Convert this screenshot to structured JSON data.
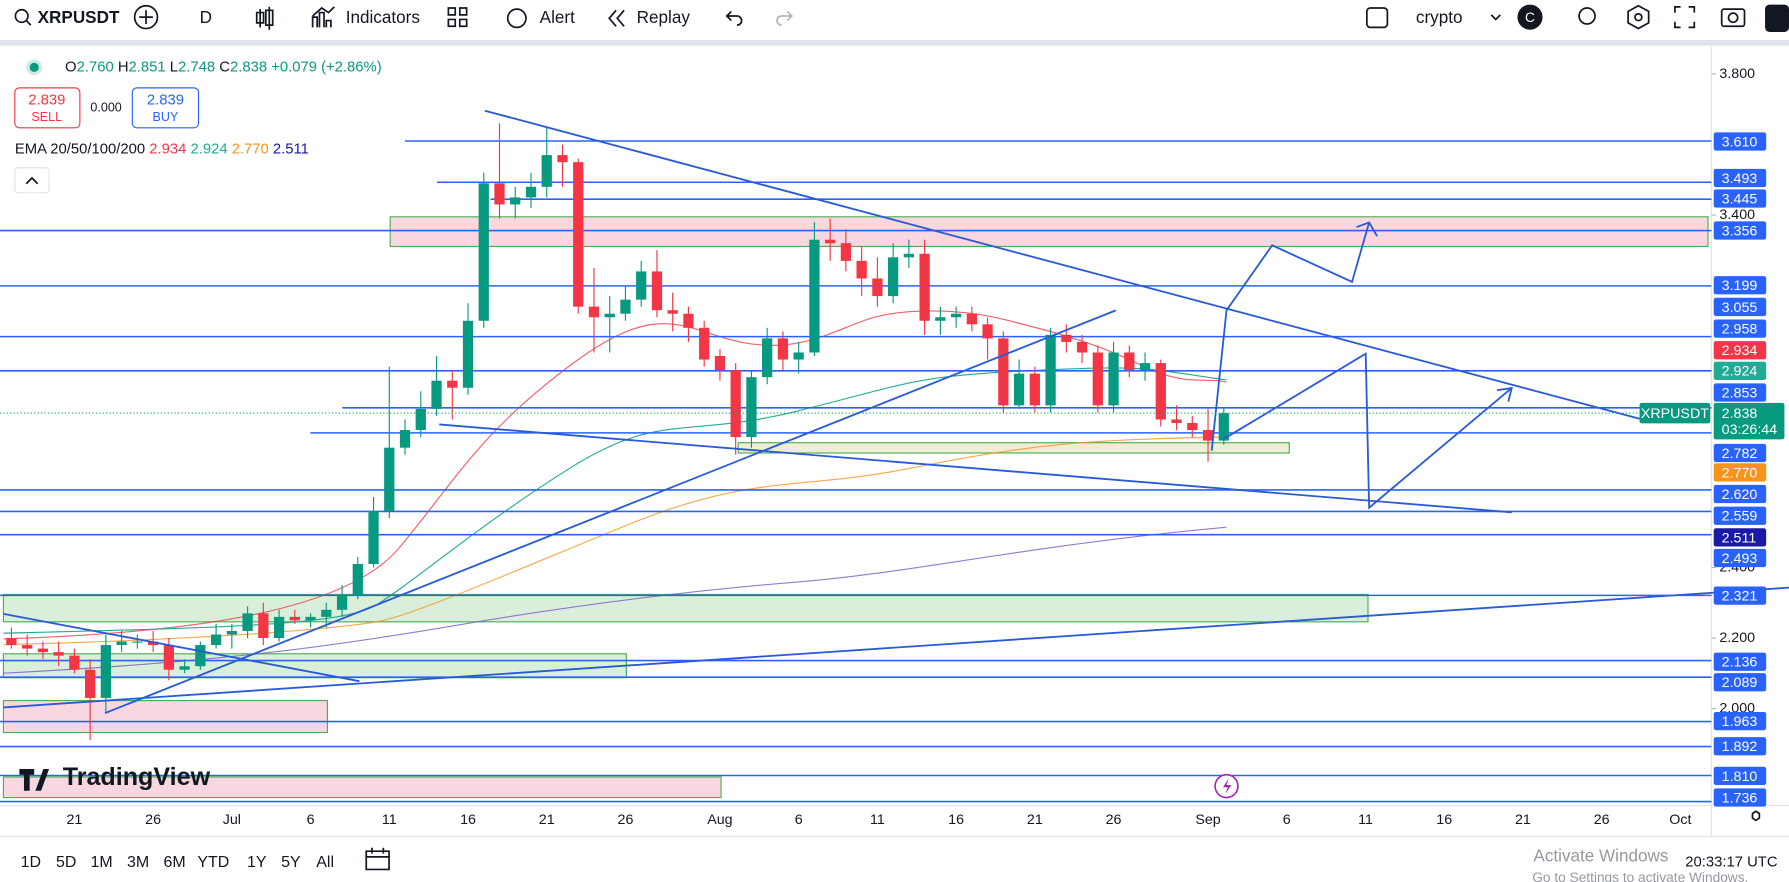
{
  "toolbar": {
    "symbol": "XRPUSDT",
    "interval": "D",
    "indicators": "Indicators",
    "alert": "Alert",
    "replay": "Replay",
    "layout_name": "crypto",
    "avatar": "C"
  },
  "legend": {
    "ohlc": [
      {
        "label": "O",
        "value": "2.760"
      },
      {
        "label": "H",
        "value": "2.851"
      },
      {
        "label": "L",
        "value": "2.748"
      },
      {
        "label": "C",
        "value": "2.838"
      }
    ],
    "change": "+0.079 (+2.86%)",
    "sell": {
      "price": "2.839",
      "label": "SELL"
    },
    "spread": "0.000",
    "buy": {
      "price": "2.839",
      "label": "BUY"
    },
    "ema": {
      "name": "EMA 20/50/100/200",
      "values": [
        "2.934",
        "2.924",
        "2.770",
        "2.511"
      ]
    }
  },
  "chart": {
    "ylim": [
      1.728,
      3.874
    ],
    "yticks": [
      {
        "value": 3.8,
        "label": "3.800"
      },
      {
        "value": 3.4,
        "label": "3.400"
      },
      {
        "value": 2.4,
        "label": "2.400"
      },
      {
        "value": 2.2,
        "label": "2.200"
      },
      {
        "value": 2.0,
        "label": "2.000"
      }
    ],
    "xticks": [
      "21",
      "26",
      "Jul",
      "6",
      "11",
      "16",
      "21",
      "26",
      "Aug",
      "6",
      "11",
      "16",
      "21",
      "26",
      "Sep",
      "6",
      "11",
      "16",
      "21",
      "26",
      "Oct"
    ],
    "up_color": "#089981",
    "down_color": "#f23645",
    "level_color": "#2962ff",
    "candles": [
      [
        2.2,
        2.23,
        2.17,
        2.18
      ],
      [
        2.18,
        2.21,
        2.15,
        2.17
      ],
      [
        2.17,
        2.19,
        2.14,
        2.16
      ],
      [
        2.16,
        2.19,
        2.12,
        2.15
      ],
      [
        2.15,
        2.17,
        2.1,
        2.11
      ],
      [
        2.11,
        2.14,
        1.91,
        2.03
      ],
      [
        2.03,
        2.21,
        1.99,
        2.18
      ],
      [
        2.18,
        2.22,
        2.16,
        2.19
      ],
      [
        2.19,
        2.21,
        2.17,
        2.19
      ],
      [
        2.19,
        2.22,
        2.16,
        2.18
      ],
      [
        2.18,
        2.2,
        2.08,
        2.11
      ],
      [
        2.11,
        2.14,
        2.1,
        2.12
      ],
      [
        2.12,
        2.19,
        2.11,
        2.18
      ],
      [
        2.18,
        2.24,
        2.17,
        2.21
      ],
      [
        2.21,
        2.24,
        2.17,
        2.22
      ],
      [
        2.22,
        2.29,
        2.2,
        2.27
      ],
      [
        2.27,
        2.3,
        2.18,
        2.2
      ],
      [
        2.2,
        2.28,
        2.19,
        2.26
      ],
      [
        2.26,
        2.28,
        2.24,
        2.25
      ],
      [
        2.25,
        2.27,
        2.23,
        2.26
      ],
      [
        2.26,
        2.3,
        2.23,
        2.28
      ],
      [
        2.28,
        2.35,
        2.26,
        2.32
      ],
      [
        2.32,
        2.43,
        2.31,
        2.41
      ],
      [
        2.41,
        2.6,
        2.4,
        2.56
      ],
      [
        2.56,
        2.97,
        2.54,
        2.74
      ],
      [
        2.74,
        2.82,
        2.72,
        2.79
      ],
      [
        2.79,
        2.9,
        2.77,
        2.85
      ],
      [
        2.85,
        3.0,
        2.83,
        2.93
      ],
      [
        2.93,
        2.96,
        2.82,
        2.91
      ],
      [
        2.91,
        3.15,
        2.89,
        3.1
      ],
      [
        3.1,
        3.52,
        3.08,
        3.49
      ],
      [
        3.49,
        3.66,
        3.39,
        3.43
      ],
      [
        3.43,
        3.48,
        3.39,
        3.45
      ],
      [
        3.45,
        3.52,
        3.42,
        3.48
      ],
      [
        3.48,
        3.65,
        3.45,
        3.57
      ],
      [
        3.57,
        3.6,
        3.48,
        3.55
      ],
      [
        3.55,
        3.56,
        3.12,
        3.14
      ],
      [
        3.14,
        3.25,
        3.01,
        3.11
      ],
      [
        3.11,
        3.17,
        3.01,
        3.12
      ],
      [
        3.12,
        3.2,
        3.1,
        3.16
      ],
      [
        3.16,
        3.27,
        3.14,
        3.24
      ],
      [
        3.24,
        3.3,
        3.11,
        3.13
      ],
      [
        3.13,
        3.18,
        3.07,
        3.12
      ],
      [
        3.12,
        3.14,
        3.04,
        3.08
      ],
      [
        3.08,
        3.1,
        2.97,
        2.99
      ],
      [
        3.0,
        3.02,
        2.93,
        2.96
      ],
      [
        2.96,
        2.98,
        2.72,
        2.77
      ],
      [
        2.77,
        2.96,
        2.74,
        2.94
      ],
      [
        2.94,
        3.08,
        2.92,
        3.05
      ],
      [
        3.05,
        3.07,
        2.96,
        2.99
      ],
      [
        2.99,
        3.04,
        2.95,
        3.01
      ],
      [
        3.01,
        3.38,
        3.0,
        3.33
      ],
      [
        3.33,
        3.39,
        3.27,
        3.32
      ],
      [
        3.32,
        3.36,
        3.24,
        3.27
      ],
      [
        3.27,
        3.31,
        3.17,
        3.22
      ],
      [
        3.22,
        3.28,
        3.14,
        3.17
      ],
      [
        3.17,
        3.32,
        3.15,
        3.28
      ],
      [
        3.28,
        3.33,
        3.25,
        3.29
      ],
      [
        3.29,
        3.33,
        3.06,
        3.1
      ],
      [
        3.1,
        3.14,
        3.06,
        3.11
      ],
      [
        3.11,
        3.14,
        3.08,
        3.12
      ],
      [
        3.12,
        3.14,
        3.07,
        3.09
      ],
      [
        3.09,
        3.11,
        2.99,
        3.05
      ],
      [
        3.05,
        3.07,
        2.84,
        2.86
      ],
      [
        2.86,
        2.99,
        2.85,
        2.95
      ],
      [
        2.95,
        2.97,
        2.84,
        2.86
      ],
      [
        2.86,
        3.08,
        2.84,
        3.06
      ],
      [
        3.06,
        3.09,
        3.01,
        3.04
      ],
      [
        3.04,
        3.06,
        2.98,
        3.01
      ],
      [
        3.01,
        3.03,
        2.84,
        2.86
      ],
      [
        2.86,
        3.04,
        2.84,
        3.01
      ],
      [
        3.01,
        3.03,
        2.94,
        2.96
      ],
      [
        2.96,
        3.01,
        2.93,
        2.98
      ],
      [
        2.98,
        2.99,
        2.8,
        2.82
      ],
      [
        2.82,
        2.86,
        2.79,
        2.81
      ],
      [
        2.81,
        2.83,
        2.77,
        2.79
      ],
      [
        2.79,
        2.85,
        2.7,
        2.76
      ],
      [
        2.76,
        2.851,
        2.748,
        2.838
      ]
    ],
    "levels": [
      {
        "value": 3.61,
        "label": "3.610"
      },
      {
        "value": 3.493,
        "label": "3.493"
      },
      {
        "value": 3.445,
        "label": "3.445"
      },
      {
        "value": 3.356,
        "label": "3.356"
      },
      {
        "value": 3.199,
        "label": "3.199"
      },
      {
        "value": 3.055,
        "label": "3.055"
      },
      {
        "value": 2.958,
        "label": "2.958"
      },
      {
        "value": 2.853,
        "label": "2.853"
      },
      {
        "value": 2.782,
        "label": "2.782"
      },
      {
        "value": 2.62,
        "label": "2.620"
      },
      {
        "value": 2.559,
        "label": "2.559"
      },
      {
        "value": 2.493,
        "label": "2.493"
      },
      {
        "value": 2.321,
        "label": "2.321"
      },
      {
        "value": 2.136,
        "label": "2.136"
      },
      {
        "value": 2.089,
        "label": "2.089"
      },
      {
        "value": 1.963,
        "label": "1.963"
      },
      {
        "value": 1.892,
        "label": "1.892"
      },
      {
        "value": 1.81,
        "label": "1.810"
      },
      {
        "value": 1.736,
        "label": "1.736"
      }
    ],
    "ema_tags": [
      {
        "value": 2.934,
        "label": "2.934",
        "color": "#f23645"
      },
      {
        "value": 2.924,
        "label": "2.924",
        "color": "#22ab94"
      },
      {
        "value": 2.77,
        "label": "2.770",
        "color": "#f7931a"
      },
      {
        "value": 2.511,
        "label": "2.511",
        "color": "#1a1aa6"
      }
    ],
    "last_price": {
      "value": 2.838,
      "label": "2.838",
      "countdown": "03:26:44",
      "symbol": "XRPUSDT"
    }
  },
  "watermark": "TradingView",
  "footer": {
    "ranges": [
      "1D",
      "5D",
      "1M",
      "3M",
      "6M",
      "YTD",
      "1Y",
      "5Y",
      "All"
    ],
    "clock": "20:33:17 UTC",
    "activation": "Activate Windows",
    "activation_hint": "Go to Settings to activate Windows."
  }
}
